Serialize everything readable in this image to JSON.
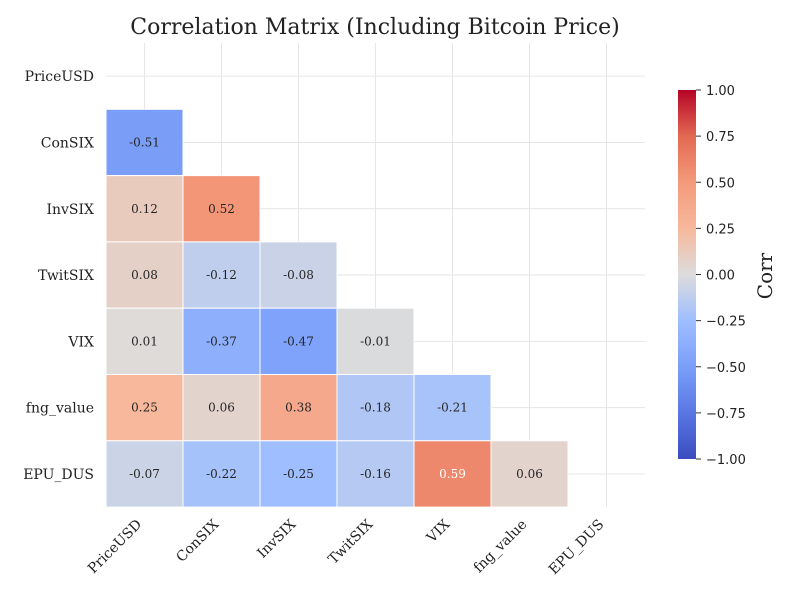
{
  "chart_data": {
    "type": "heatmap",
    "title": "Correlation Matrix (Including Bitcoin Price)",
    "variables": [
      "PriceUSD",
      "ConSIX",
      "InvSIX",
      "TwitSIX",
      "VIX",
      "fng_value",
      "EPU_DUS"
    ],
    "lower_triangle_values": [
      [],
      [
        -0.51
      ],
      [
        0.12,
        0.52
      ],
      [
        0.08,
        -0.12,
        -0.08
      ],
      [
        0.01,
        -0.37,
        -0.47,
        -0.01
      ],
      [
        0.25,
        0.06,
        0.38,
        -0.18,
        -0.21
      ],
      [
        -0.07,
        -0.22,
        -0.25,
        -0.16,
        0.59,
        0.06
      ]
    ],
    "value_labels": [
      [],
      [
        "-0.51"
      ],
      [
        "0.12",
        "0.52"
      ],
      [
        "0.08",
        "-0.12",
        "-0.08"
      ],
      [
        "0.01",
        "-0.37",
        "-0.47",
        "-0.01"
      ],
      [
        "0.25",
        "0.06",
        "0.38",
        "-0.18",
        "-0.21"
      ],
      [
        "-0.07",
        "-0.22",
        "-0.25",
        "-0.16",
        "0.59",
        "0.06"
      ]
    ],
    "mask": "upper triangle and diagonal hidden",
    "colormap": "coolwarm",
    "vmin": -1.0,
    "vmax": 1.0,
    "colorbar": {
      "label": "Corr",
      "ticks": [
        "1.00",
        "0.75",
        "0.50",
        "0.25",
        "0.00",
        "−0.25",
        "−0.50",
        "−0.75",
        "−1.00"
      ],
      "tick_values": [
        1.0,
        0.75,
        0.5,
        0.25,
        0.0,
        -0.25,
        -0.5,
        -0.75,
        -1.0
      ]
    },
    "grid": true
  }
}
